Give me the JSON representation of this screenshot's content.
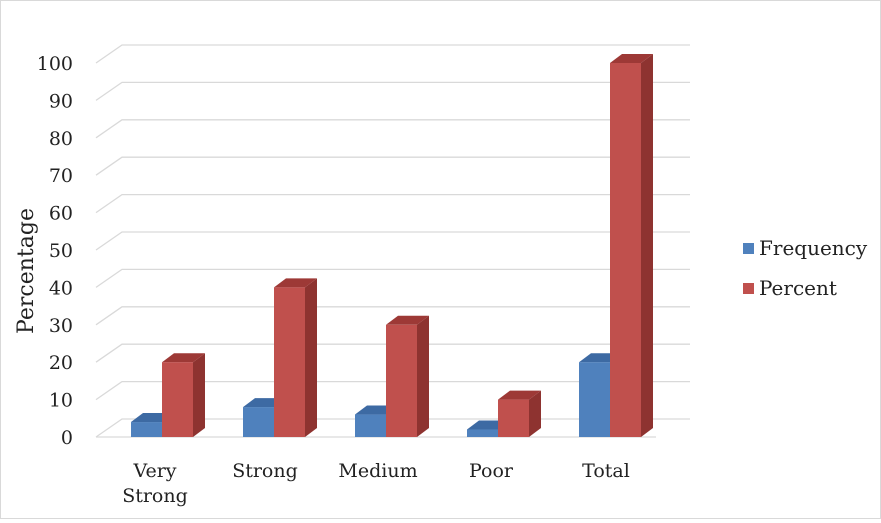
{
  "chart_data": {
    "type": "bar",
    "title": "",
    "xlabel": "",
    "ylabel": "Percentage",
    "categories": [
      "Very Strong",
      "Strong",
      "Medium",
      "Poor",
      "Total"
    ],
    "category_lines": [
      [
        "Very",
        "Strong"
      ],
      [
        "Strong"
      ],
      [
        "Medium"
      ],
      [
        "Poor"
      ],
      [
        "Total"
      ]
    ],
    "series": [
      {
        "name": "Frequency",
        "values": [
          4,
          8,
          6,
          2,
          20
        ],
        "color": "#4f81bd",
        "side_color": "#3b6496",
        "top_color": "#3d6aa3"
      },
      {
        "name": "Percent",
        "values": [
          20,
          40,
          30,
          10,
          100
        ],
        "color": "#c0504d",
        "side_color": "#8e3330",
        "top_color": "#9d3936"
      }
    ],
    "ylim": [
      0,
      100
    ],
    "yticks": [
      0,
      10,
      20,
      30,
      40,
      50,
      60,
      70,
      80,
      90,
      100
    ],
    "grid": true,
    "legend_position": "right",
    "style": "3d-clustered-column"
  }
}
